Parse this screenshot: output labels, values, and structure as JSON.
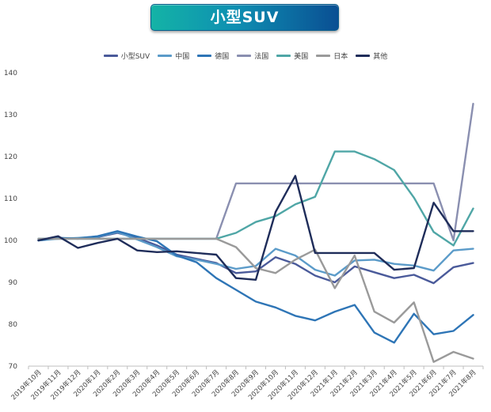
{
  "title": "小型SUV",
  "chart_data": {
    "type": "line",
    "title": "小型SUV",
    "xlabel": "",
    "ylabel": "",
    "ylim": [
      70,
      140
    ],
    "yticks": [
      70,
      80,
      90,
      100,
      110,
      120,
      130,
      140
    ],
    "grid": false,
    "legend_position": "top",
    "categories": [
      "2019年10月",
      "2019年11月",
      "2019年12月",
      "2020年1月",
      "2020年2月",
      "2020年3月",
      "2020年4月",
      "2020年5月",
      "2020年6月",
      "2020年7月",
      "2020年8月",
      "2020年9月",
      "2020年10月",
      "2020年11月",
      "2020年12月",
      "2021年1月",
      "2021年2月",
      "2021年3月",
      "2021年4月",
      "2021年5月",
      "2021年6月",
      "2021年7月",
      "2021年8月"
    ],
    "series": [
      {
        "name": "小型SUV",
        "color": "#4a5a9a",
        "values": [
          100,
          100.6,
          100.4,
          100.8,
          101.8,
          100.6,
          98.8,
          96.6,
          95.6,
          94.6,
          92.2,
          92.6,
          96,
          94.4,
          91.6,
          90,
          93.8,
          92.4,
          91,
          91.8,
          89.8,
          93.6,
          94.6
        ]
      },
      {
        "name": "中国",
        "color": "#5b9bc9",
        "values": [
          100,
          100.4,
          100.6,
          100.9,
          102,
          100.2,
          98.4,
          96.2,
          95.4,
          94.4,
          93.2,
          93.9,
          98,
          96.4,
          93,
          91.6,
          95.2,
          95.4,
          94.4,
          94,
          92.8,
          97.6,
          98
        ]
      },
      {
        "name": "德国",
        "color": "#2e75b6",
        "values": [
          100,
          100.6,
          100.5,
          101,
          102.2,
          100.9,
          99.8,
          96.4,
          94.8,
          91,
          88.2,
          85.4,
          84,
          82,
          80.9,
          83,
          84.6,
          78,
          75.6,
          82.5,
          77.6,
          78.4,
          82.2
        ]
      },
      {
        "name": "法国",
        "color": "#8a8fb0",
        "values": [
          100.4,
          100.4,
          100.4,
          100.4,
          100.4,
          100.4,
          100.4,
          100.4,
          100.4,
          100.4,
          113.6,
          113.6,
          113.6,
          113.6,
          113.6,
          113.6,
          113.6,
          113.6,
          113.6,
          113.6,
          113.6,
          100,
          132.6
        ]
      },
      {
        "name": "美国",
        "color": "#4fa6a6",
        "values": [
          100.4,
          100.4,
          100.4,
          100.4,
          100.4,
          100.4,
          100.4,
          100.4,
          100.4,
          100.4,
          101.8,
          104.4,
          105.8,
          108.6,
          110.4,
          121.2,
          121.2,
          119.4,
          116.8,
          110.2,
          102,
          98.8,
          107.6
        ]
      },
      {
        "name": "日本",
        "color": "#9a9a9a",
        "values": [
          100.4,
          100.4,
          100.4,
          100.4,
          100.4,
          100.4,
          100.4,
          100.4,
          100.4,
          100.4,
          98.4,
          93.4,
          92.2,
          95.4,
          97.8,
          88.6,
          96.4,
          83,
          80.4,
          85.2,
          71,
          73.4,
          71.8
        ]
      },
      {
        "name": "其他",
        "color": "#1f2d5a",
        "values": [
          100,
          101,
          98.2,
          99.4,
          100.4,
          97.6,
          97.2,
          97.4,
          97,
          96.6,
          91,
          90.6,
          106.8,
          115.4,
          97,
          97,
          97,
          97,
          93,
          93.4,
          109,
          102.2,
          102.2
        ]
      }
    ]
  }
}
